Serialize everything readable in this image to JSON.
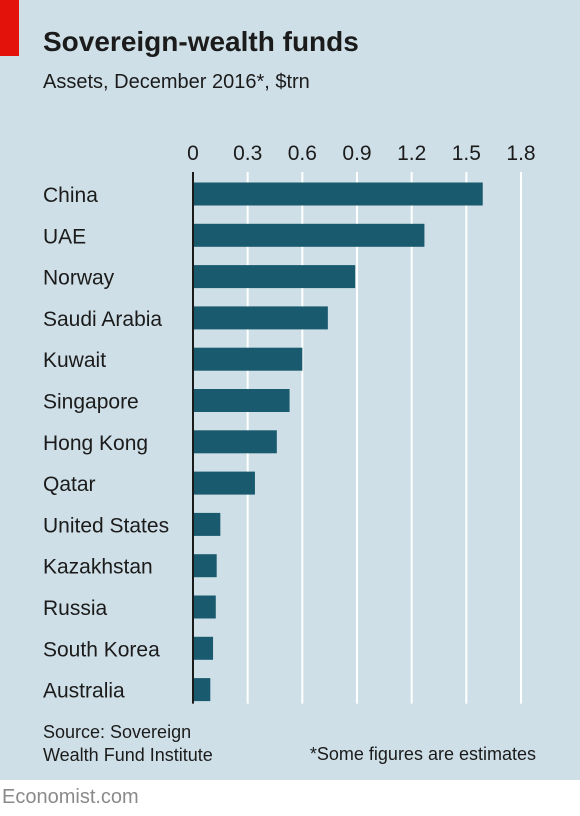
{
  "title": "Sovereign-wealth funds",
  "subtitle": "Assets, December 2016*, $trn",
  "source_lines": [
    "Source: Sovereign",
    "Wealth Fund Institute"
  ],
  "note": "*Some figures are estimates",
  "brand": "Economist.com",
  "colors": {
    "bar": "#1a5a6e",
    "background": "#cfdfe7",
    "accent": "#e3120b",
    "grid": "#ffffff"
  },
  "chart_data": {
    "type": "bar",
    "orientation": "horizontal",
    "title": "Sovereign-wealth funds",
    "subtitle": "Assets, December 2016*, $trn",
    "xlim": [
      0,
      1.8
    ],
    "xticks": [
      "0",
      "0.3",
      "0.6",
      "0.9",
      "1.2",
      "1.5",
      "1.8"
    ],
    "xtick_values": [
      0,
      0.3,
      0.6,
      0.9,
      1.2,
      1.5,
      1.8
    ],
    "grid": true,
    "categories": [
      "China",
      "UAE",
      "Norway",
      "Saudi Arabia",
      "Kuwait",
      "Singapore",
      "Hong Kong",
      "Qatar",
      "United States",
      "Kazakhstan",
      "Russia",
      "South Korea",
      "Australia"
    ],
    "values": [
      1.59,
      1.27,
      0.89,
      0.74,
      0.6,
      0.53,
      0.46,
      0.34,
      0.15,
      0.13,
      0.125,
      0.11,
      0.095
    ]
  }
}
